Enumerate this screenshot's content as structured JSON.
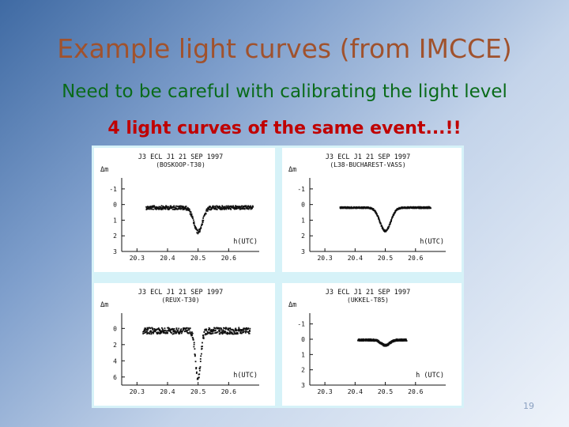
{
  "slide": {
    "title": "Example light curves (from IMCCE)",
    "subtitle": "Need to be careful with calibrating the light level",
    "subtitle2": "4 light curves of the same event...!!",
    "page_number": "19"
  },
  "colors": {
    "title": "#a0522d",
    "subtitle": "#0a6b1a",
    "subtitle2": "#c00000",
    "plot_ink": "#111111",
    "figure_bg": "#d6f2f8"
  },
  "chart_data": [
    {
      "type": "scatter",
      "title": "J3 ECL J1 21 SEP 1997",
      "subtitle": "(BOSKOOP-T30)",
      "ylabel": "Δm",
      "xlabel": "h(UTC)",
      "xlim": [
        20.25,
        20.7
      ],
      "ylim": [
        3,
        -1.5
      ],
      "xticks": [
        "20.3",
        "20.4",
        "20.5",
        "20.6"
      ],
      "yticks": [
        "-1",
        "0",
        "1",
        "2",
        "3"
      ],
      "baseline": 0.2,
      "depth": 1.55,
      "center": 20.5,
      "width": 0.02,
      "x_start": 20.33,
      "x_end": 20.68,
      "noise": 0.12
    },
    {
      "type": "scatter",
      "title": "J3 ECL J1 21 SEP 1997",
      "subtitle": "(L38-BUCHAREST-VASS)",
      "ylabel": "Δm",
      "xlabel": "h(UTC)",
      "xlim": [
        20.25,
        20.7
      ],
      "ylim": [
        3,
        -1.5
      ],
      "xticks": [
        "20.3",
        "20.4",
        "20.5",
        "20.6"
      ],
      "yticks": [
        "-1",
        "0",
        "1",
        "2",
        "3"
      ],
      "baseline": 0.2,
      "depth": 1.5,
      "center": 20.5,
      "width": 0.025,
      "x_start": 20.35,
      "x_end": 20.65,
      "noise": 0.05
    },
    {
      "type": "scatter",
      "title": "J3 ECL J1 21 SEP 1997",
      "subtitle": "(REUX-T30)",
      "ylabel": "Δm",
      "xlabel": "h(UTC)",
      "xlim": [
        20.25,
        20.7
      ],
      "ylim": [
        7,
        -1.5
      ],
      "xticks": [
        "20.3",
        "20.4",
        "20.5",
        "20.6"
      ],
      "yticks": [
        "0",
        "2",
        "4",
        "6"
      ],
      "baseline": 0.3,
      "depth": 5.8,
      "center": 20.5,
      "width": 0.012,
      "x_start": 20.32,
      "x_end": 20.67,
      "noise": 0.4
    },
    {
      "type": "scatter",
      "title": "J3 ECL J1 21 SEP 1997",
      "subtitle": "(UKKEL-T85)",
      "ylabel": "Δm",
      "xlabel": "h (UTC)",
      "xlim": [
        20.25,
        20.7
      ],
      "ylim": [
        3,
        -1.5
      ],
      "xticks": [
        "20.3",
        "20.4",
        "20.5",
        "20.6"
      ],
      "yticks": [
        "-1",
        "0",
        "1",
        "2",
        "3"
      ],
      "baseline": 0.05,
      "depth": 0.35,
      "center": 20.5,
      "width": 0.02,
      "x_start": 20.41,
      "x_end": 20.57,
      "noise": 0.06
    }
  ]
}
